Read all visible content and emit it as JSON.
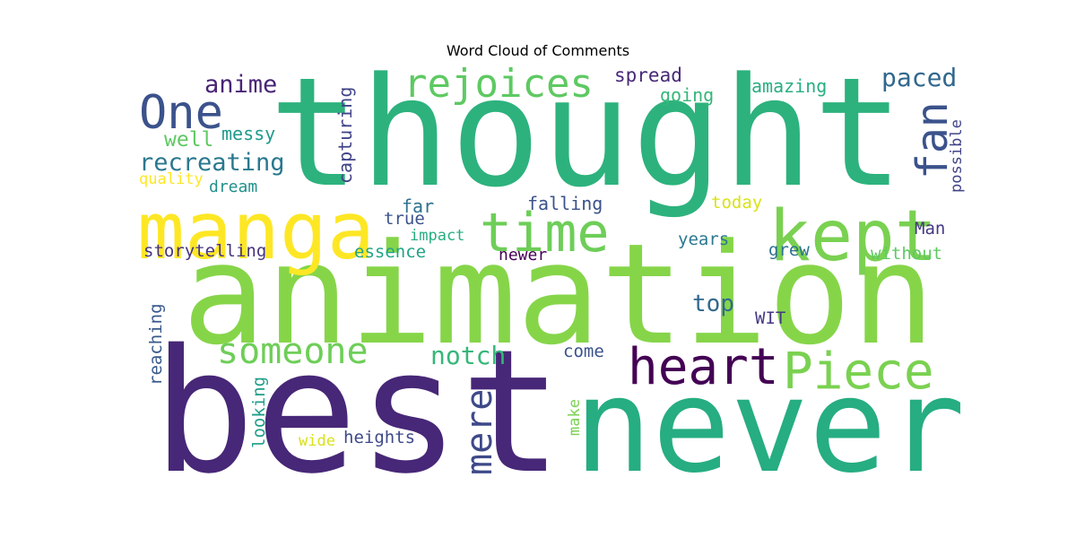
{
  "chart_data": {
    "type": "wordcloud",
    "title": "Word Cloud of Comments",
    "words": [
      {
        "text": "thought",
        "color": "#2db27d"
      },
      {
        "text": "animation",
        "color": "#86d549"
      },
      {
        "text": "best",
        "color": "#472777"
      },
      {
        "text": "never",
        "color": "#26ad81"
      },
      {
        "text": "manga",
        "color": "#fde725"
      },
      {
        "text": "kept",
        "color": "#7ad151"
      },
      {
        "text": "time",
        "color": "#6ece58"
      },
      {
        "text": "heart",
        "color": "#440154"
      },
      {
        "text": "Piece",
        "color": "#7ad151"
      },
      {
        "text": "rejoices",
        "color": "#5ec962"
      },
      {
        "text": "One",
        "color": "#3b528b"
      },
      {
        "text": "someone",
        "color": "#6ece58"
      },
      {
        "text": "fan",
        "color": "#3b528b"
      },
      {
        "text": "mere",
        "color": "#3e4989"
      },
      {
        "text": "anime",
        "color": "#482475"
      },
      {
        "text": "paced",
        "color": "#31688e"
      },
      {
        "text": "recreating",
        "color": "#2a788e"
      },
      {
        "text": "notch",
        "color": "#35b779"
      },
      {
        "text": "top",
        "color": "#31688e"
      },
      {
        "text": "capturing",
        "color": "#404387"
      },
      {
        "text": "amazing",
        "color": "#29af7f"
      },
      {
        "text": "spread",
        "color": "#482878"
      },
      {
        "text": "going",
        "color": "#35b779"
      },
      {
        "text": "well",
        "color": "#5ec962"
      },
      {
        "text": "messy",
        "color": "#1f9a8a"
      },
      {
        "text": "possible",
        "color": "#414487"
      },
      {
        "text": "quality",
        "color": "#fde725"
      },
      {
        "text": "dream",
        "color": "#21918c"
      },
      {
        "text": "far",
        "color": "#2c728e"
      },
      {
        "text": "falling",
        "color": "#3b528b"
      },
      {
        "text": "today",
        "color": "#d8e219"
      },
      {
        "text": "true",
        "color": "#3b528b"
      },
      {
        "text": "impact",
        "color": "#27ad81"
      },
      {
        "text": "Man",
        "color": "#443983"
      },
      {
        "text": "years",
        "color": "#2a788e"
      },
      {
        "text": "grew",
        "color": "#2c728e"
      },
      {
        "text": "storytelling",
        "color": "#46337e"
      },
      {
        "text": "essence",
        "color": "#20a386"
      },
      {
        "text": "newer",
        "color": "#440154"
      },
      {
        "text": "without",
        "color": "#5ec962"
      },
      {
        "text": "WIT",
        "color": "#443983"
      },
      {
        "text": "come",
        "color": "#3b528b"
      },
      {
        "text": "reaching",
        "color": "#38598c"
      },
      {
        "text": "looking",
        "color": "#1f9e89"
      },
      {
        "text": "make",
        "color": "#7ad151"
      },
      {
        "text": "wide",
        "color": "#d8e219"
      },
      {
        "text": "heights",
        "color": "#3e4989"
      }
    ]
  }
}
